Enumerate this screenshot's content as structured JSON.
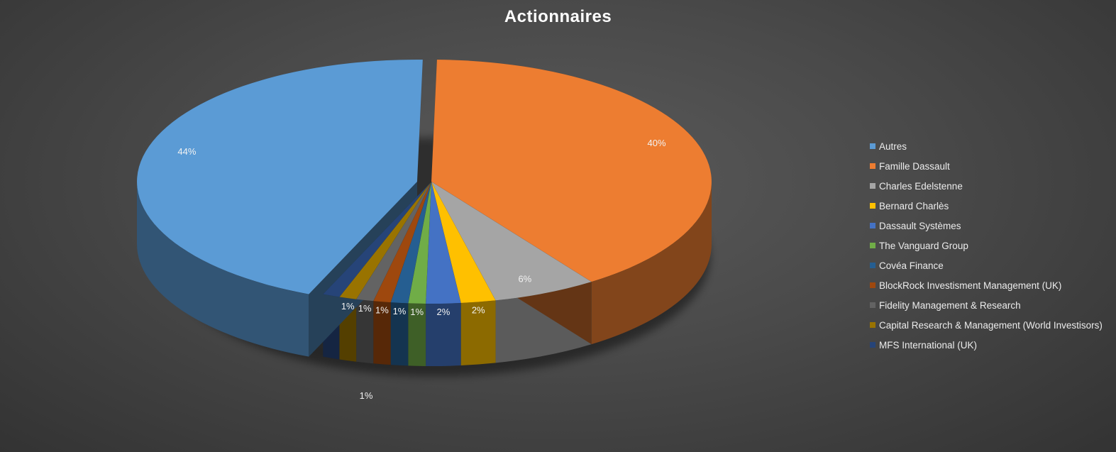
{
  "chart_data": {
    "type": "pie",
    "title": "Actionnaires",
    "legend_position": "right",
    "slices": [
      {
        "name": "Autres",
        "value": 44,
        "label": "44%",
        "color": "#5B9BD5"
      },
      {
        "name": "Famille Dassault",
        "value": 40,
        "label": "40%",
        "color": "#ED7D31"
      },
      {
        "name": "Charles Edelstenne",
        "value": 6,
        "label": "6%",
        "color": "#A5A5A5"
      },
      {
        "name": "Bernard Charlès",
        "value": 2,
        "label": "2%",
        "color": "#FFC000"
      },
      {
        "name": "Dassault Systèmes",
        "value": 2,
        "label": "2%",
        "color": "#4472C4"
      },
      {
        "name": "The Vanguard Group",
        "value": 1,
        "label": "1%",
        "color": "#70AD47"
      },
      {
        "name": "Covéa Finance",
        "value": 1,
        "label": "1%",
        "color": "#255E91"
      },
      {
        "name": "BlockRock Investisment Management (UK)",
        "value": 1,
        "label": "1%",
        "color": "#9E480E"
      },
      {
        "name": "Fidelity Management & Research",
        "value": 1,
        "label": "1%",
        "color": "#636363"
      },
      {
        "name": "Capital Research & Management (World Investisors)",
        "value": 1,
        "label": "1%",
        "color": "#997300"
      },
      {
        "name": "MFS International (UK)",
        "value": 1,
        "label": "1%",
        "color": "#264478"
      }
    ]
  }
}
